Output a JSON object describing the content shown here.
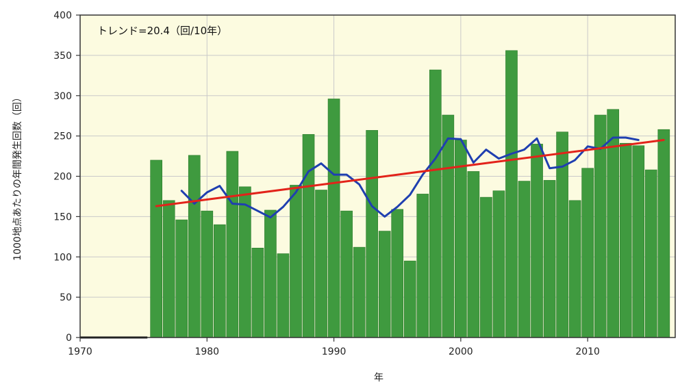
{
  "chart_data": {
    "type": "bar",
    "annotation": "トレンド=20.4（回/10年）",
    "ylabel": "1000地点あたりの年間発生回数（回）",
    "xlabel": "年",
    "xlim": [
      1970,
      2016.9
    ],
    "ylim": [
      0,
      400
    ],
    "x_ticks": [
      1970,
      1980,
      1990,
      2000,
      2010
    ],
    "y_ticks": [
      0,
      50,
      100,
      150,
      200,
      250,
      300,
      350,
      400
    ],
    "grid": true,
    "background_color": "#fcfbe0",
    "bar_color": "#3f9a3f",
    "series": [
      {
        "type": "bar",
        "x": [
          1976,
          1977,
          1978,
          1979,
          1980,
          1981,
          1982,
          1983,
          1984,
          1985,
          1986,
          1987,
          1988,
          1989,
          1990,
          1991,
          1992,
          1993,
          1994,
          1995,
          1996,
          1997,
          1998,
          1999,
          2000,
          2001,
          2002,
          2003,
          2004,
          2005,
          2006,
          2007,
          2008,
          2009,
          2010,
          2011,
          2012,
          2013,
          2014,
          2015,
          2016
        ],
        "values": [
          220,
          170,
          146,
          226,
          157,
          140,
          231,
          187,
          111,
          158,
          104,
          189,
          252,
          183,
          296,
          157,
          112,
          257,
          132,
          159,
          95,
          178,
          332,
          276,
          245,
          206,
          174,
          182,
          356,
          194,
          240,
          195,
          255,
          170,
          210,
          276,
          283,
          241,
          238,
          208,
          258
        ]
      },
      {
        "type": "line",
        "color": "#1f3fb0",
        "x": [
          1978,
          1979,
          1980,
          1981,
          1982,
          1983,
          1984,
          1985,
          1986,
          1987,
          1988,
          1989,
          1990,
          1991,
          1992,
          1993,
          1994,
          1995,
          1996,
          1997,
          1998,
          1999,
          2000,
          2001,
          2002,
          2003,
          2004,
          2005,
          2006,
          2007,
          2008,
          2009,
          2010,
          2011,
          2012,
          2013,
          2014
        ],
        "values": [
          182,
          166,
          180,
          188,
          166,
          165,
          157,
          149,
          162,
          180,
          206,
          216,
          202,
          202,
          190,
          163,
          150,
          162,
          177,
          202,
          222,
          247,
          246,
          217,
          233,
          222,
          228,
          233,
          247,
          210,
          212,
          220,
          237,
          234,
          248,
          248,
          245
        ]
      },
      {
        "type": "line",
        "color": "#e2231a",
        "x": [
          1976,
          2016
        ],
        "values": [
          163,
          245
        ]
      }
    ]
  }
}
